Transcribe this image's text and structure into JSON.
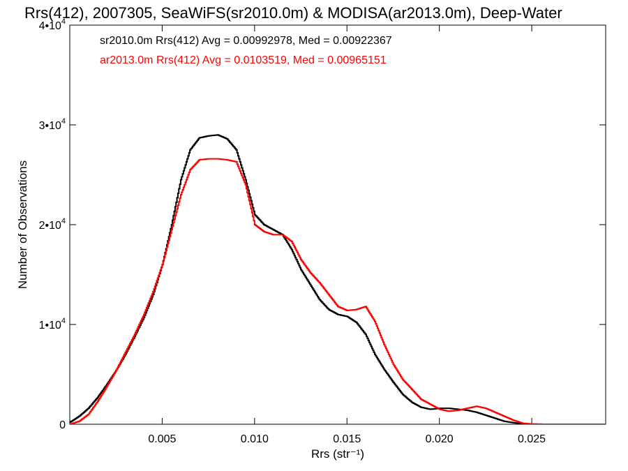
{
  "chart_data": {
    "type": "line",
    "title": "Rrs(412), 2007305, SeaWiFS(sr2010.0m) & MODISA(ar2013.0m), Deep-Water",
    "xlabel": "Rrs (str⁻¹)",
    "ylabel": "Number of Observations",
    "xlim": [
      0.0,
      0.029
    ],
    "ylim": [
      0,
      40000
    ],
    "x_ticks": [
      {
        "value": 0.005,
        "label": "0.005"
      },
      {
        "value": 0.01,
        "label": "0.010"
      },
      {
        "value": 0.015,
        "label": "0.015"
      },
      {
        "value": 0.02,
        "label": "0.020"
      },
      {
        "value": 0.025,
        "label": "0.025"
      }
    ],
    "y_ticks": [
      {
        "value": 0,
        "label": "0",
        "exp": ""
      },
      {
        "value": 10000,
        "label": "1•10",
        "exp": "4"
      },
      {
        "value": 20000,
        "label": "2•10",
        "exp": "4"
      },
      {
        "value": 30000,
        "label": "3•10",
        "exp": "4"
      },
      {
        "value": 40000,
        "label": "4•10",
        "exp": "4"
      }
    ],
    "grid": false,
    "series": [
      {
        "name": "sr2010.0m",
        "label": "sr2010.0m Rrs(412) Avg = 0.00992978, Med = 0.00922367",
        "color": "#000000",
        "x": [
          0.0,
          0.0005,
          0.001,
          0.0015,
          0.002,
          0.0025,
          0.003,
          0.0035,
          0.004,
          0.0045,
          0.005,
          0.0055,
          0.006,
          0.0065,
          0.007,
          0.0075,
          0.008,
          0.0085,
          0.009,
          0.0095,
          0.01,
          0.0105,
          0.011,
          0.0115,
          0.012,
          0.0125,
          0.013,
          0.0135,
          0.014,
          0.0145,
          0.015,
          0.0155,
          0.016,
          0.0165,
          0.017,
          0.0175,
          0.018,
          0.0185,
          0.019,
          0.0195,
          0.02,
          0.0205,
          0.021,
          0.0215,
          0.022,
          0.0225,
          0.023,
          0.0235,
          0.024,
          0.0245,
          0.025,
          0.0255,
          0.026,
          0.0265,
          0.027,
          0.0275,
          0.028,
          0.0285,
          0.029
        ],
        "values": [
          200,
          800,
          1600,
          2700,
          4000,
          5400,
          7000,
          8800,
          10700,
          13000,
          16000,
          20000,
          24500,
          27500,
          28700,
          28900,
          29000,
          28600,
          27500,
          24500,
          21000,
          20000,
          19500,
          19000,
          17500,
          15500,
          14000,
          12500,
          11500,
          11000,
          10800,
          10200,
          9000,
          7000,
          5500,
          4200,
          3000,
          2200,
          1700,
          1500,
          1600,
          1600,
          1500,
          1400,
          1200,
          900,
          600,
          300,
          150,
          60,
          20,
          5,
          0,
          0,
          0,
          0,
          0,
          0,
          0
        ]
      },
      {
        "name": "ar2013.0m",
        "label": "ar2013.0m Rrs(412) Avg = 0.0103519, Med = 0.00965151",
        "color": "#ff0000",
        "x": [
          0.0,
          0.0005,
          0.001,
          0.0015,
          0.002,
          0.0025,
          0.003,
          0.0035,
          0.004,
          0.0045,
          0.005,
          0.0055,
          0.006,
          0.0065,
          0.007,
          0.0075,
          0.008,
          0.0085,
          0.009,
          0.0095,
          0.01,
          0.0105,
          0.011,
          0.0115,
          0.012,
          0.0125,
          0.013,
          0.0135,
          0.014,
          0.0145,
          0.015,
          0.0155,
          0.016,
          0.0165,
          0.017,
          0.0175,
          0.018,
          0.0185,
          0.019,
          0.0195,
          0.02,
          0.0205,
          0.021,
          0.0215,
          0.022,
          0.0225,
          0.023,
          0.0235,
          0.024,
          0.0245,
          0.025,
          0.0255,
          0.026,
          0.0265,
          0.027,
          0.0275,
          0.028,
          0.0285,
          0.029
        ],
        "values": [
          0,
          300,
          1000,
          2300,
          3800,
          5400,
          7200,
          9000,
          11000,
          13300,
          16000,
          19500,
          23000,
          25500,
          26500,
          26600,
          26600,
          26500,
          26300,
          24000,
          20000,
          19300,
          19000,
          19000,
          18300,
          16500,
          15200,
          14200,
          13000,
          11800,
          11400,
          11500,
          11800,
          10300,
          8000,
          6000,
          4500,
          3500,
          2500,
          2000,
          1500,
          1300,
          1400,
          1600,
          1800,
          1600,
          1200,
          800,
          400,
          100,
          20,
          5,
          0,
          0,
          0,
          0,
          0,
          0,
          0
        ]
      }
    ]
  }
}
